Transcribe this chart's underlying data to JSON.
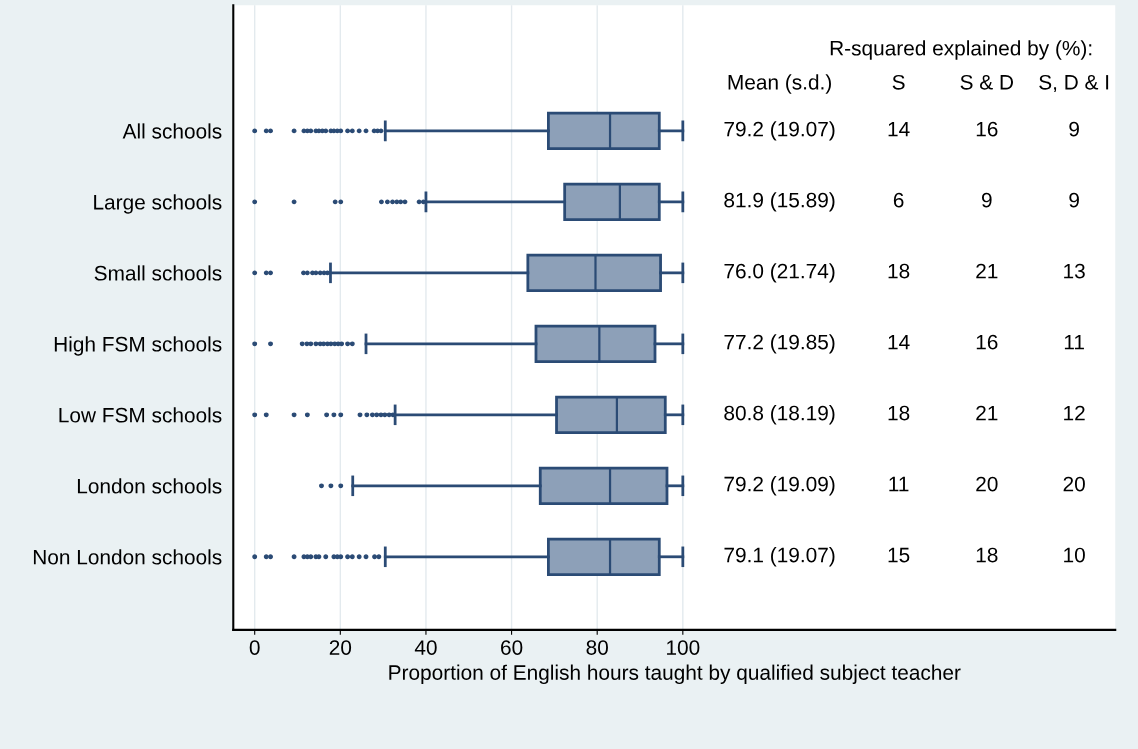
{
  "chart_data": {
    "type": "box",
    "orientation": "horizontal",
    "xlabel": "Proportion of English hours taught by qualified subject teacher",
    "categories": [
      "All schools",
      "Large schools",
      "Small schools",
      "High FSM schools",
      "Low FSM schools",
      "London schools",
      "Non London schools"
    ],
    "color": "#8da0b8",
    "boxes": [
      {
        "low": 30.5,
        "q1": 68.6,
        "median": 83.0,
        "q3": 94.5,
        "high": 100,
        "outliers": [
          0,
          2.7,
          3.7,
          9.2,
          11.5,
          12.3,
          13.1,
          14.3,
          15.0,
          15.8,
          16.6,
          17.8,
          18.5,
          19.3,
          20.1,
          21.7,
          22.8,
          24.4,
          26.0,
          27.9,
          28.7,
          29.5
        ]
      },
      {
        "low": 40.0,
        "q1": 72.4,
        "median": 85.3,
        "q3": 94.5,
        "high": 100,
        "outliers": [
          0,
          9.2,
          18.8,
          20.1,
          29.6,
          31.0,
          32.2,
          33.2,
          34.1,
          35.1,
          38.4,
          39.4
        ]
      },
      {
        "low": 17.7,
        "q1": 63.8,
        "median": 79.6,
        "q3": 94.8,
        "high": 100,
        "outliers": [
          0,
          2.7,
          3.7,
          11.4,
          12.3,
          13.5,
          14.3,
          15.3,
          16.2,
          17.0
        ]
      },
      {
        "low": 26.0,
        "q1": 65.7,
        "median": 80.5,
        "q3": 93.5,
        "high": 100,
        "outliers": [
          0,
          3.7,
          11.1,
          12.2,
          13.1,
          14.3,
          15.3,
          16.1,
          17.0,
          17.8,
          18.7,
          19.5,
          20.3,
          21.7,
          22.8
        ]
      },
      {
        "low": 32.8,
        "q1": 70.5,
        "median": 84.6,
        "q3": 95.9,
        "high": 100,
        "outliers": [
          0,
          2.7,
          9.2,
          12.3,
          16.8,
          18.5,
          20.1,
          24.6,
          26.2,
          27.5,
          28.5,
          29.5,
          30.4,
          31.4,
          32.3
        ]
      },
      {
        "low": 22.9,
        "q1": 66.7,
        "median": 83.0,
        "q3": 96.3,
        "high": 100,
        "outliers": [
          15.6,
          17.8,
          20.1
        ]
      },
      {
        "low": 30.5,
        "q1": 68.6,
        "median": 83.0,
        "q3": 94.5,
        "high": 100,
        "outliers": [
          0,
          2.7,
          3.7,
          9.2,
          11.5,
          12.3,
          13.1,
          14.3,
          15.0,
          16.6,
          18.5,
          19.3,
          20.1,
          21.7,
          22.8,
          24.4,
          26.0,
          28.0,
          29.0
        ]
      }
    ],
    "xlim": [
      -5,
      201
    ],
    "xticks": [
      0,
      20,
      40,
      60,
      80,
      100
    ],
    "grid": "x",
    "marker": "circle",
    "annotations": [
      "R-squared explained by (%):",
      "Mean (s.d.)",
      "S",
      "S & D",
      "S, D & I",
      "79.2 (19.07)",
      "14",
      "16",
      "9",
      "81.9 (15.89)",
      "6",
      "9",
      "9",
      "76.0 (21.74)",
      "18",
      "21",
      "13",
      "77.2 (19.85)",
      "14",
      "16",
      "11",
      "80.8 (18.19)",
      "18",
      "21",
      "12",
      "79.2 (19.09)",
      "11",
      "20",
      "20",
      "79.1 (19.07)",
      "15",
      "18",
      "10"
    ]
  }
}
